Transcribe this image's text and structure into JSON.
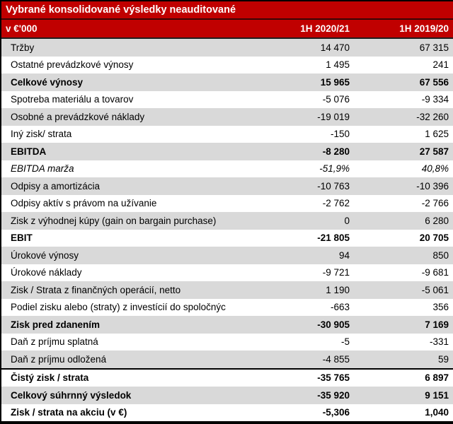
{
  "table": {
    "title": "Vybrané konsolidované výsledky neauditované",
    "header": {
      "unit": "v €'000",
      "col1": "1H 2020/21",
      "col2": "1H 2019/20"
    },
    "colors": {
      "header_red": "#C00000",
      "row_shade": "#D9D9D9",
      "header_text": "#FFFFFF",
      "body_text": "#000000"
    },
    "rows": [
      {
        "label": "Tržby",
        "v1": "14 470",
        "v2": "67 315"
      },
      {
        "label": "Ostatné prevádzkové výnosy",
        "v1": "1 495",
        "v2": "241"
      },
      {
        "label": "Celkové výnosy",
        "v1": "15 965",
        "v2": "67 556",
        "bold": true
      },
      {
        "label": "Spotreba materiálu a tovarov",
        "v1": "-5 076",
        "v2": "-9 334"
      },
      {
        "label": "Osobné a prevádzkové náklady",
        "v1": "-19 019",
        "v2": "-32 260"
      },
      {
        "label": "Iný zisk/ strata",
        "v1": "-150",
        "v2": "1 625"
      },
      {
        "label": "EBITDA",
        "v1": "-8 280",
        "v2": "27 587",
        "bold": true
      },
      {
        "label": "EBITDA marža",
        "v1": "-51,9%",
        "v2": "40,8%",
        "italic": true
      },
      {
        "label": "Odpisy a amortizácia",
        "v1": "-10 763",
        "v2": "-10 396"
      },
      {
        "label": "Odpisy aktív s právom na užívanie",
        "v1": "-2 762",
        "v2": "-2 766"
      },
      {
        "label": "Zisk z výhodnej kúpy (gain on bargain purchase)",
        "v1": "0",
        "v2": "6 280"
      },
      {
        "label": "EBIT",
        "v1": "-21 805",
        "v2": "20 705",
        "bold": true
      },
      {
        "label": "Úrokové výnosy",
        "v1": "94",
        "v2": "850"
      },
      {
        "label": "Úrokové náklady",
        "v1": "-9 721",
        "v2": "-9 681"
      },
      {
        "label": "Zisk / Strata z finančných operácií, netto",
        "v1": "1 190",
        "v2": "-5 061"
      },
      {
        "label": "Podiel zisku alebo (straty) z investícií do spoločnýc",
        "v1": "-663",
        "v2": "356"
      },
      {
        "label": "Zisk pred zdanením",
        "v1": "-30 905",
        "v2": "7 169",
        "bold": true
      },
      {
        "label": "Daň z príjmu splatná",
        "v1": "-5",
        "v2": "-331"
      },
      {
        "label": "Daň z príjmu odložená",
        "v1": "-4 855",
        "v2": "59"
      },
      {
        "label": "Čistý zisk / strata",
        "v1": "-35 765",
        "v2": "6 897",
        "bold": true,
        "rule_above": true
      },
      {
        "label": "Celkový súhrnný výsledok",
        "v1": "-35 920",
        "v2": "9 151",
        "bold": true
      },
      {
        "label": "Zisk / strata na akciu (v €)",
        "v1": "-5,306",
        "v2": "1,040",
        "bold": true
      }
    ]
  }
}
